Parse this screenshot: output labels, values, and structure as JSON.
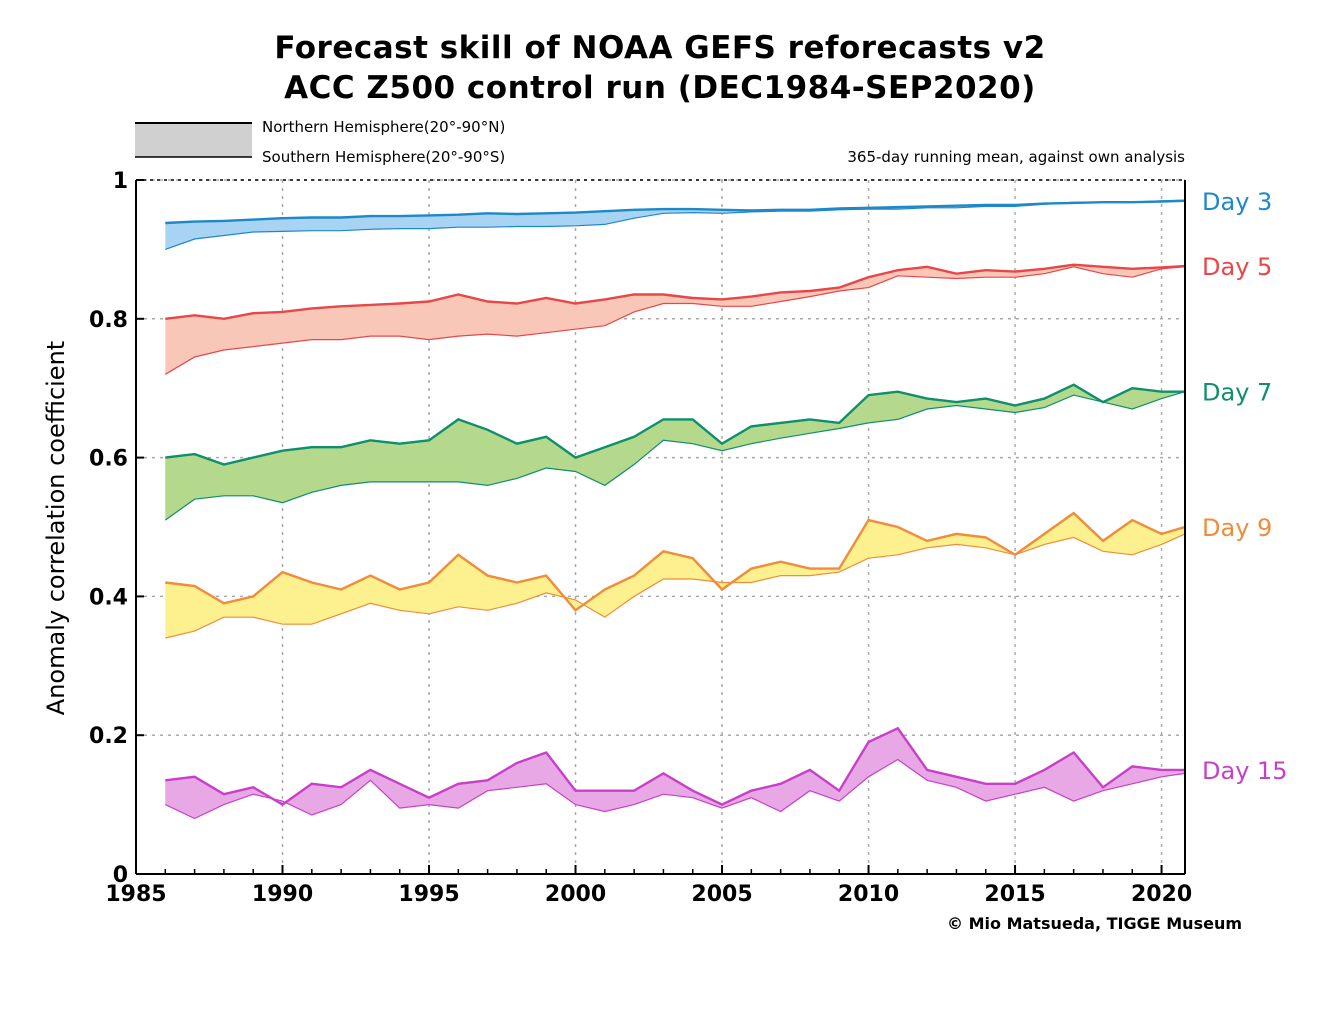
{
  "chart_data": {
    "type": "area",
    "title": "Forecast skill of NOAA GEFS reforecasts v2",
    "subtitle": "ACC Z500 control run (DEC1984-SEP2020)",
    "ylabel": "Anomaly correlation coefficient",
    "xlabel": "",
    "note": "365-day running mean, against own analysis",
    "credit": "© Mio Matsueda, TIGGE Museum",
    "xlim": [
      1985,
      2020.8
    ],
    "ylim": [
      0,
      1
    ],
    "x_ticks": [
      1985,
      1990,
      1995,
      2000,
      2005,
      2010,
      2015,
      2020
    ],
    "x_tick_labels": [
      "1985",
      "1990",
      "1995",
      "2000",
      "2005",
      "2010",
      "2015",
      "2020"
    ],
    "y_ticks": [
      0,
      0.2,
      0.4,
      0.6,
      0.8,
      1
    ],
    "y_tick_labels": [
      "0",
      "0.2",
      "0.4",
      "0.6",
      "0.8",
      "1"
    ],
    "grid": true,
    "legend": {
      "position": "top-left",
      "items": [
        {
          "label": "Northern Hemisphere(20°-90°N)",
          "style": "thick"
        },
        {
          "label": "Southern Hemisphere(20°-90°S)",
          "style": "thin"
        }
      ]
    },
    "x": [
      1986.0,
      1987.0,
      1988.0,
      1989.0,
      1990.0,
      1991.0,
      1992.0,
      1993.0,
      1994.0,
      1995.0,
      1996.0,
      1997.0,
      1998.0,
      1999.0,
      2000.0,
      2001.0,
      2002.0,
      2003.0,
      2004.0,
      2005.0,
      2006.0,
      2007.0,
      2008.0,
      2009.0,
      2010.0,
      2011.0,
      2012.0,
      2013.0,
      2014.0,
      2015.0,
      2016.0,
      2017.0,
      2018.0,
      2019.0,
      2020.0,
      2020.8
    ],
    "series": [
      {
        "name": "Day 3",
        "color": "#1e88c8",
        "fill": "#a9d3f3",
        "nh": [
          0.938,
          0.94,
          0.941,
          0.943,
          0.945,
          0.946,
          0.946,
          0.948,
          0.948,
          0.949,
          0.95,
          0.952,
          0.951,
          0.952,
          0.953,
          0.955,
          0.957,
          0.958,
          0.958,
          0.957,
          0.956,
          0.957,
          0.957,
          0.959,
          0.96,
          0.961,
          0.962,
          0.963,
          0.964,
          0.964,
          0.966,
          0.967,
          0.968,
          0.968,
          0.969,
          0.97
        ],
        "sh": [
          0.9,
          0.915,
          0.92,
          0.925,
          0.926,
          0.927,
          0.927,
          0.929,
          0.93,
          0.93,
          0.932,
          0.932,
          0.933,
          0.933,
          0.934,
          0.936,
          0.945,
          0.952,
          0.953,
          0.952,
          0.954,
          0.955,
          0.955,
          0.957,
          0.958,
          0.958,
          0.96,
          0.96,
          0.962,
          0.962,
          0.965,
          0.968,
          0.968,
          0.968,
          0.97,
          0.971
        ]
      },
      {
        "name": "Day 5",
        "color": "#e8474a",
        "fill": "#f8c7b7",
        "nh": [
          0.8,
          0.805,
          0.8,
          0.808,
          0.81,
          0.815,
          0.818,
          0.82,
          0.822,
          0.825,
          0.835,
          0.825,
          0.822,
          0.83,
          0.822,
          0.828,
          0.835,
          0.835,
          0.83,
          0.828,
          0.832,
          0.838,
          0.84,
          0.845,
          0.86,
          0.87,
          0.875,
          0.865,
          0.87,
          0.868,
          0.872,
          0.878,
          0.875,
          0.872,
          0.874,
          0.876
        ],
        "sh": [
          0.72,
          0.745,
          0.755,
          0.76,
          0.765,
          0.77,
          0.77,
          0.775,
          0.775,
          0.77,
          0.775,
          0.778,
          0.775,
          0.78,
          0.785,
          0.79,
          0.81,
          0.822,
          0.822,
          0.818,
          0.818,
          0.825,
          0.832,
          0.84,
          0.845,
          0.862,
          0.86,
          0.858,
          0.86,
          0.86,
          0.865,
          0.875,
          0.865,
          0.86,
          0.872,
          0.875
        ]
      },
      {
        "name": "Day 7",
        "color": "#0f8f6c",
        "fill": "#b4d88c",
        "nh": [
          0.6,
          0.605,
          0.59,
          0.6,
          0.61,
          0.615,
          0.615,
          0.625,
          0.62,
          0.625,
          0.655,
          0.64,
          0.62,
          0.63,
          0.6,
          0.615,
          0.63,
          0.655,
          0.655,
          0.62,
          0.645,
          0.65,
          0.655,
          0.65,
          0.69,
          0.695,
          0.685,
          0.68,
          0.685,
          0.675,
          0.685,
          0.705,
          0.68,
          0.7,
          0.695,
          0.695
        ]
      },
      {
        "name": "Day 9",
        "color": "#f08c3a",
        "fill": "#fdf08e",
        "nh": [
          0.42,
          0.415,
          0.39,
          0.4,
          0.435,
          0.42,
          0.41,
          0.43,
          0.41,
          0.42,
          0.46,
          0.43,
          0.42,
          0.43,
          0.38,
          0.41,
          0.43,
          0.465,
          0.455,
          0.41,
          0.44,
          0.45,
          0.44,
          0.44,
          0.51,
          0.5,
          0.48,
          0.49,
          0.485,
          0.46,
          0.49,
          0.52,
          0.48,
          0.51,
          0.49,
          0.5
        ]
      },
      {
        "name": "Day 15",
        "color": "#c840c8",
        "fill": "#e8a8e6",
        "nh": [
          0.135,
          0.14,
          0.115,
          0.125,
          0.1,
          0.13,
          0.125,
          0.15,
          0.13,
          0.11,
          0.13,
          0.135,
          0.16,
          0.175,
          0.12,
          0.12,
          0.12,
          0.145,
          0.12,
          0.1,
          0.12,
          0.13,
          0.15,
          0.12,
          0.19,
          0.21,
          0.15,
          0.14,
          0.13,
          0.13,
          0.15,
          0.175,
          0.125,
          0.155,
          0.15,
          0.15
        ],
        "sh": [
          0.1,
          0.08,
          0.1,
          0.115,
          0.105,
          0.085,
          0.1,
          0.135,
          0.095,
          0.1,
          0.095,
          0.12,
          0.125,
          0.13,
          0.1,
          0.09,
          0.1,
          0.115,
          0.11,
          0.095,
          0.11,
          0.09,
          0.12,
          0.105,
          0.14,
          0.165,
          0.135,
          0.125,
          0.105,
          0.115,
          0.125,
          0.105,
          0.12,
          0.13,
          0.14,
          0.145
        ]
      }
    ],
    "day7_sh": [
      0.51,
      0.54,
      0.545,
      0.545,
      0.535,
      0.55,
      0.56,
      0.565,
      0.565,
      0.565,
      0.565,
      0.56,
      0.57,
      0.585,
      0.58,
      0.56,
      0.59,
      0.625,
      0.62,
      0.61,
      0.62,
      0.628,
      0.635,
      0.642,
      0.65,
      0.655,
      0.67,
      0.675,
      0.67,
      0.665,
      0.672,
      0.69,
      0.68,
      0.67,
      0.685,
      0.695
    ],
    "day9_sh": [
      0.34,
      0.35,
      0.37,
      0.37,
      0.36,
      0.36,
      0.375,
      0.39,
      0.38,
      0.375,
      0.385,
      0.38,
      0.39,
      0.405,
      0.395,
      0.37,
      0.4,
      0.425,
      0.425,
      0.42,
      0.42,
      0.43,
      0.43,
      0.435,
      0.455,
      0.46,
      0.47,
      0.475,
      0.47,
      0.46,
      0.475,
      0.485,
      0.465,
      0.46,
      0.475,
      0.49
    ]
  }
}
